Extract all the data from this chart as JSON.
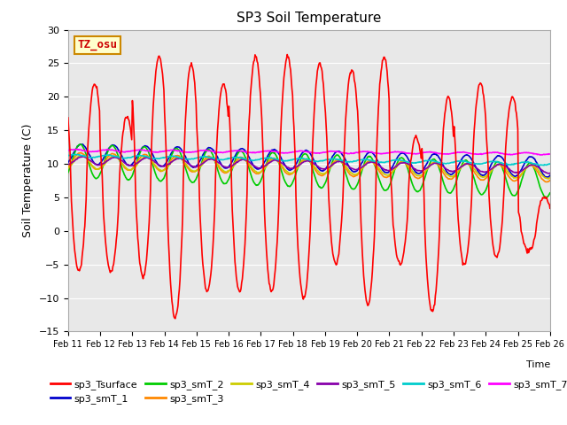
{
  "title": "SP3 Soil Temperature",
  "ylabel": "Soil Temperature (C)",
  "xlabel": "Time",
  "ylim": [
    -15,
    30
  ],
  "xlim": [
    0,
    15
  ],
  "xtick_labels": [
    "Feb 11",
    "Feb 12",
    "Feb 13",
    "Feb 14",
    "Feb 15",
    "Feb 16",
    "Feb 17",
    "Feb 18",
    "Feb 19",
    "Feb 20",
    "Feb 21",
    "Feb 22",
    "Feb 23",
    "Feb 24",
    "Feb 25",
    "Feb 26"
  ],
  "yticks": [
    -15,
    -10,
    -5,
    0,
    5,
    10,
    15,
    20,
    25,
    30
  ],
  "bg_color": "#e8e8e8",
  "annotation_text": "TZ_osu",
  "annotation_color": "#cc0000",
  "annotation_bg": "#ffffcc",
  "annotation_border": "#cc8800",
  "series_order": [
    "sp3_Tsurface",
    "sp3_smT_1",
    "sp3_smT_2",
    "sp3_smT_3",
    "sp3_smT_4",
    "sp3_smT_5",
    "sp3_smT_6",
    "sp3_smT_7"
  ],
  "legend_row1": [
    "sp3_Tsurface",
    "sp3_smT_1",
    "sp3_smT_2",
    "sp3_smT_3",
    "sp3_smT_4",
    "sp3_smT_5"
  ],
  "legend_row2": [
    "sp3_smT_6",
    "sp3_smT_7"
  ],
  "series": {
    "sp3_Tsurface": {
      "color": "#ff0000",
      "lw": 1.2
    },
    "sp3_smT_1": {
      "color": "#0000cc",
      "lw": 1.2
    },
    "sp3_smT_2": {
      "color": "#00cc00",
      "lw": 1.2
    },
    "sp3_smT_3": {
      "color": "#ff8800",
      "lw": 1.2
    },
    "sp3_smT_4": {
      "color": "#cccc00",
      "lw": 1.2
    },
    "sp3_smT_5": {
      "color": "#8800aa",
      "lw": 1.2
    },
    "sp3_smT_6": {
      "color": "#00cccc",
      "lw": 1.2
    },
    "sp3_smT_7": {
      "color": "#ff00ff",
      "lw": 1.2
    }
  }
}
